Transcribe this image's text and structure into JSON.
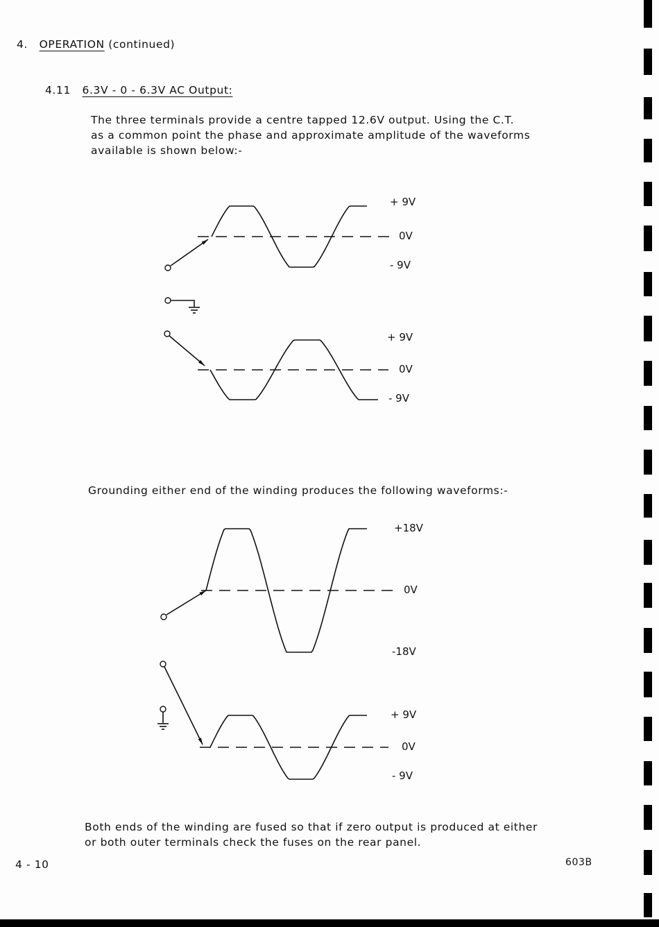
{
  "header": {
    "section_number": "4.",
    "section_title": "OPERATION",
    "section_suffix": "(continued)"
  },
  "subsection": {
    "number": "4.11",
    "title": "6.3V - 0 - 6.3V AC Output:"
  },
  "intro_lines": [
    "The three terminals provide a centre tapped 12.6V output.  Using the C.T.",
    "as a common point the phase and approximate amplitude of the waveforms",
    "available is shown below:-"
  ],
  "diagram1": {
    "top": {
      "plus": "+ 9V",
      "zero": "0V",
      "minus": "- 9V"
    },
    "bottom": {
      "plus": "+ 9V",
      "zero": "0V",
      "minus": "- 9V"
    }
  },
  "grounding_text": "Grounding either end of the winding produces the following waveforms:-",
  "diagram2": {
    "top": {
      "plus": "+18V",
      "zero": "0V",
      "minus": "-18V"
    },
    "bottom": {
      "plus": "+ 9V",
      "zero": "0V",
      "minus": "- 9V"
    }
  },
  "closing_lines": [
    "Both ends of the winding are fused so that if zero output is produced at either",
    "or both outer terminals check the fuses on the rear panel."
  ],
  "footer": {
    "page": "4 - 10",
    "model": "603B"
  }
}
